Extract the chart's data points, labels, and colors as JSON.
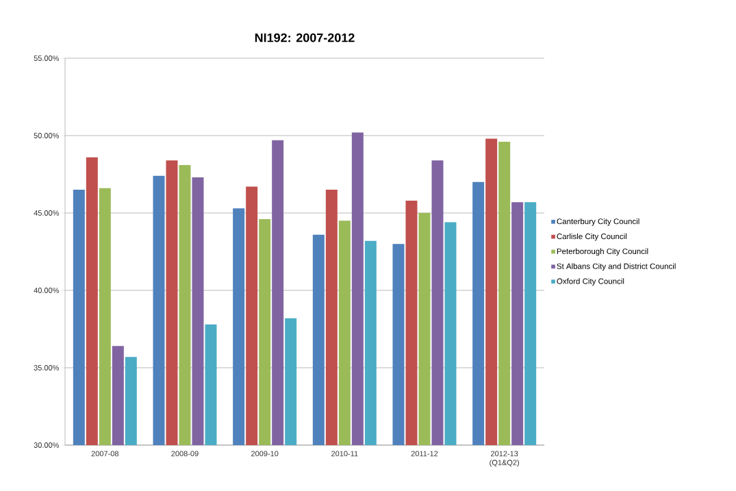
{
  "chart_data": {
    "type": "bar",
    "title": "NI192: 2007-2012",
    "categories": [
      "2007-08",
      "2008-09",
      "2009-10",
      "2010-11",
      "2011-12",
      "2012-13 (Q1&Q2)"
    ],
    "series": [
      {
        "name": "Canterbury City Council",
        "color": "#4f81bd",
        "values": [
          46.5,
          47.4,
          45.3,
          43.6,
          43.0,
          47.0
        ]
      },
      {
        "name": "Carlisle City Council",
        "color": "#c0504d",
        "values": [
          48.6,
          48.4,
          46.7,
          46.5,
          45.8,
          49.8
        ]
      },
      {
        "name": "Peterborough City Council",
        "color": "#9bbb59",
        "values": [
          46.6,
          48.1,
          44.6,
          44.5,
          45.0,
          49.6
        ]
      },
      {
        "name": "St Albans City and District Council",
        "color": "#8064a2",
        "values": [
          36.4,
          47.3,
          49.7,
          50.2,
          48.4,
          45.7
        ]
      },
      {
        "name": "Oxford City Council",
        "color": "#4bacc6",
        "values": [
          35.7,
          37.8,
          38.2,
          43.2,
          44.4,
          45.7
        ]
      }
    ],
    "ylim": [
      30,
      55
    ],
    "yticks": [
      {
        "value": 30,
        "label": "30.00%"
      },
      {
        "value": 35,
        "label": "35.00%"
      },
      {
        "value": 40,
        "label": "40.00%"
      },
      {
        "value": 45,
        "label": "45.00%"
      },
      {
        "value": 50,
        "label": "50.00%"
      },
      {
        "value": 55,
        "label": "55.00%"
      }
    ],
    "grid": "y",
    "legend": "right"
  }
}
